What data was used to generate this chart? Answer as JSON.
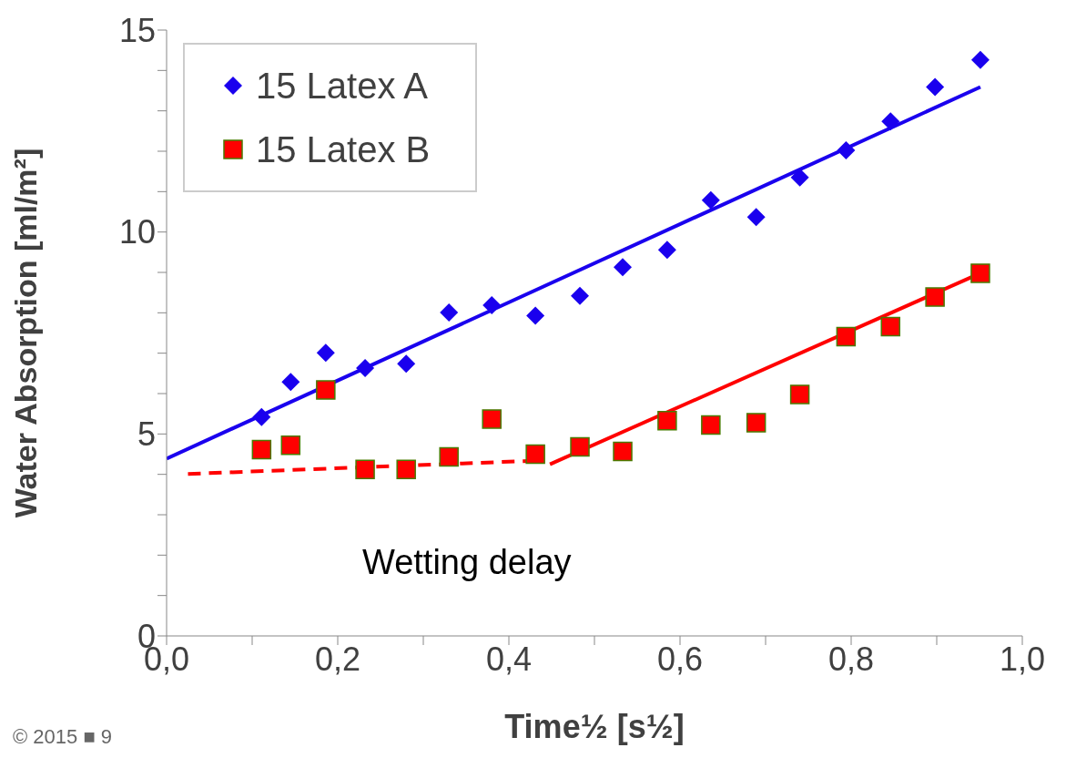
{
  "chart_data": {
    "type": "scatter",
    "xlabel": "Time½ [s½]",
    "ylabel": "Water Absorption [ml/m²]",
    "xlim": [
      0,
      1
    ],
    "xticks": [
      {
        "value": 0,
        "label": "0,0"
      },
      {
        "value": 0.1,
        "label": null
      },
      {
        "value": 0.2,
        "label": "0,2"
      },
      {
        "value": 0.3,
        "label": null
      },
      {
        "value": 0.4,
        "label": "0,4"
      },
      {
        "value": 0.5,
        "label": null
      },
      {
        "value": 0.6,
        "label": "0,6"
      },
      {
        "value": 0.7,
        "label": null
      },
      {
        "value": 0.8,
        "label": "0,8"
      },
      {
        "value": 0.9,
        "label": null
      },
      {
        "value": 1,
        "label": "1,0"
      }
    ],
    "ylim": [
      0,
      15
    ],
    "yticks": [
      0,
      {
        "value": 1,
        "label": null
      },
      {
        "value": 2,
        "label": null
      },
      {
        "value": 3,
        "label": null
      },
      {
        "value": 4,
        "label": null
      },
      5,
      {
        "value": 6,
        "label": null
      },
      {
        "value": 7,
        "label": null
      },
      {
        "value": 8,
        "label": null
      },
      {
        "value": 9,
        "label": null
      },
      10,
      {
        "value": 11,
        "label": null
      },
      {
        "value": 12,
        "label": null
      },
      {
        "value": 13,
        "label": null
      },
      {
        "value": 14,
        "label": null
      },
      15
    ],
    "grid": false,
    "legend": "top left",
    "series": [
      {
        "name": "15 Latex A",
        "marker": "diamond",
        "color": "#1a00ee",
        "x": [
          0.111,
          0.145,
          0.186,
          0.232,
          0.28,
          0.33,
          0.38,
          0.431,
          0.483,
          0.533,
          0.585,
          0.636,
          0.689,
          0.74,
          0.794,
          0.846,
          0.898,
          0.951
        ],
        "values": [
          5.42,
          6.29,
          7.01,
          6.63,
          6.74,
          8.01,
          8.19,
          7.93,
          8.42,
          9.13,
          9.56,
          10.79,
          10.37,
          11.35,
          12.02,
          12.74,
          13.59,
          14.26
        ]
      },
      {
        "name": "15 Latex B",
        "marker": "square",
        "color": "#ff0000",
        "x": [
          0.111,
          0.145,
          0.186,
          0.232,
          0.28,
          0.33,
          0.38,
          0.431,
          0.483,
          0.533,
          0.585,
          0.636,
          0.689,
          0.74,
          0.794,
          0.846,
          0.898,
          0.951
        ],
        "values": [
          4.61,
          4.72,
          6.09,
          4.12,
          4.12,
          4.43,
          5.37,
          4.5,
          4.68,
          4.57,
          5.33,
          5.22,
          5.28,
          5.98,
          7.41,
          7.66,
          8.39,
          8.98
        ]
      },
      {
        "type": "line",
        "marker": "none",
        "line_style": "solid",
        "color": "#1a00ee",
        "x": [
          0,
          0.951
        ],
        "values": [
          4.39,
          13.59
        ]
      },
      {
        "type": "line",
        "marker": "none",
        "line_style": "dashed",
        "color": "#ff0000",
        "x": [
          0.025,
          0.433
        ],
        "values": [
          4.01,
          4.34
        ]
      },
      {
        "type": "line",
        "marker": "none",
        "line_style": "solid",
        "color": "#ff0000",
        "x": [
          0.448,
          0.951
        ],
        "values": [
          4.25,
          8.98
        ]
      }
    ],
    "annotations": [
      "Wetting delay",
      "© 2015 ■ 9"
    ]
  }
}
